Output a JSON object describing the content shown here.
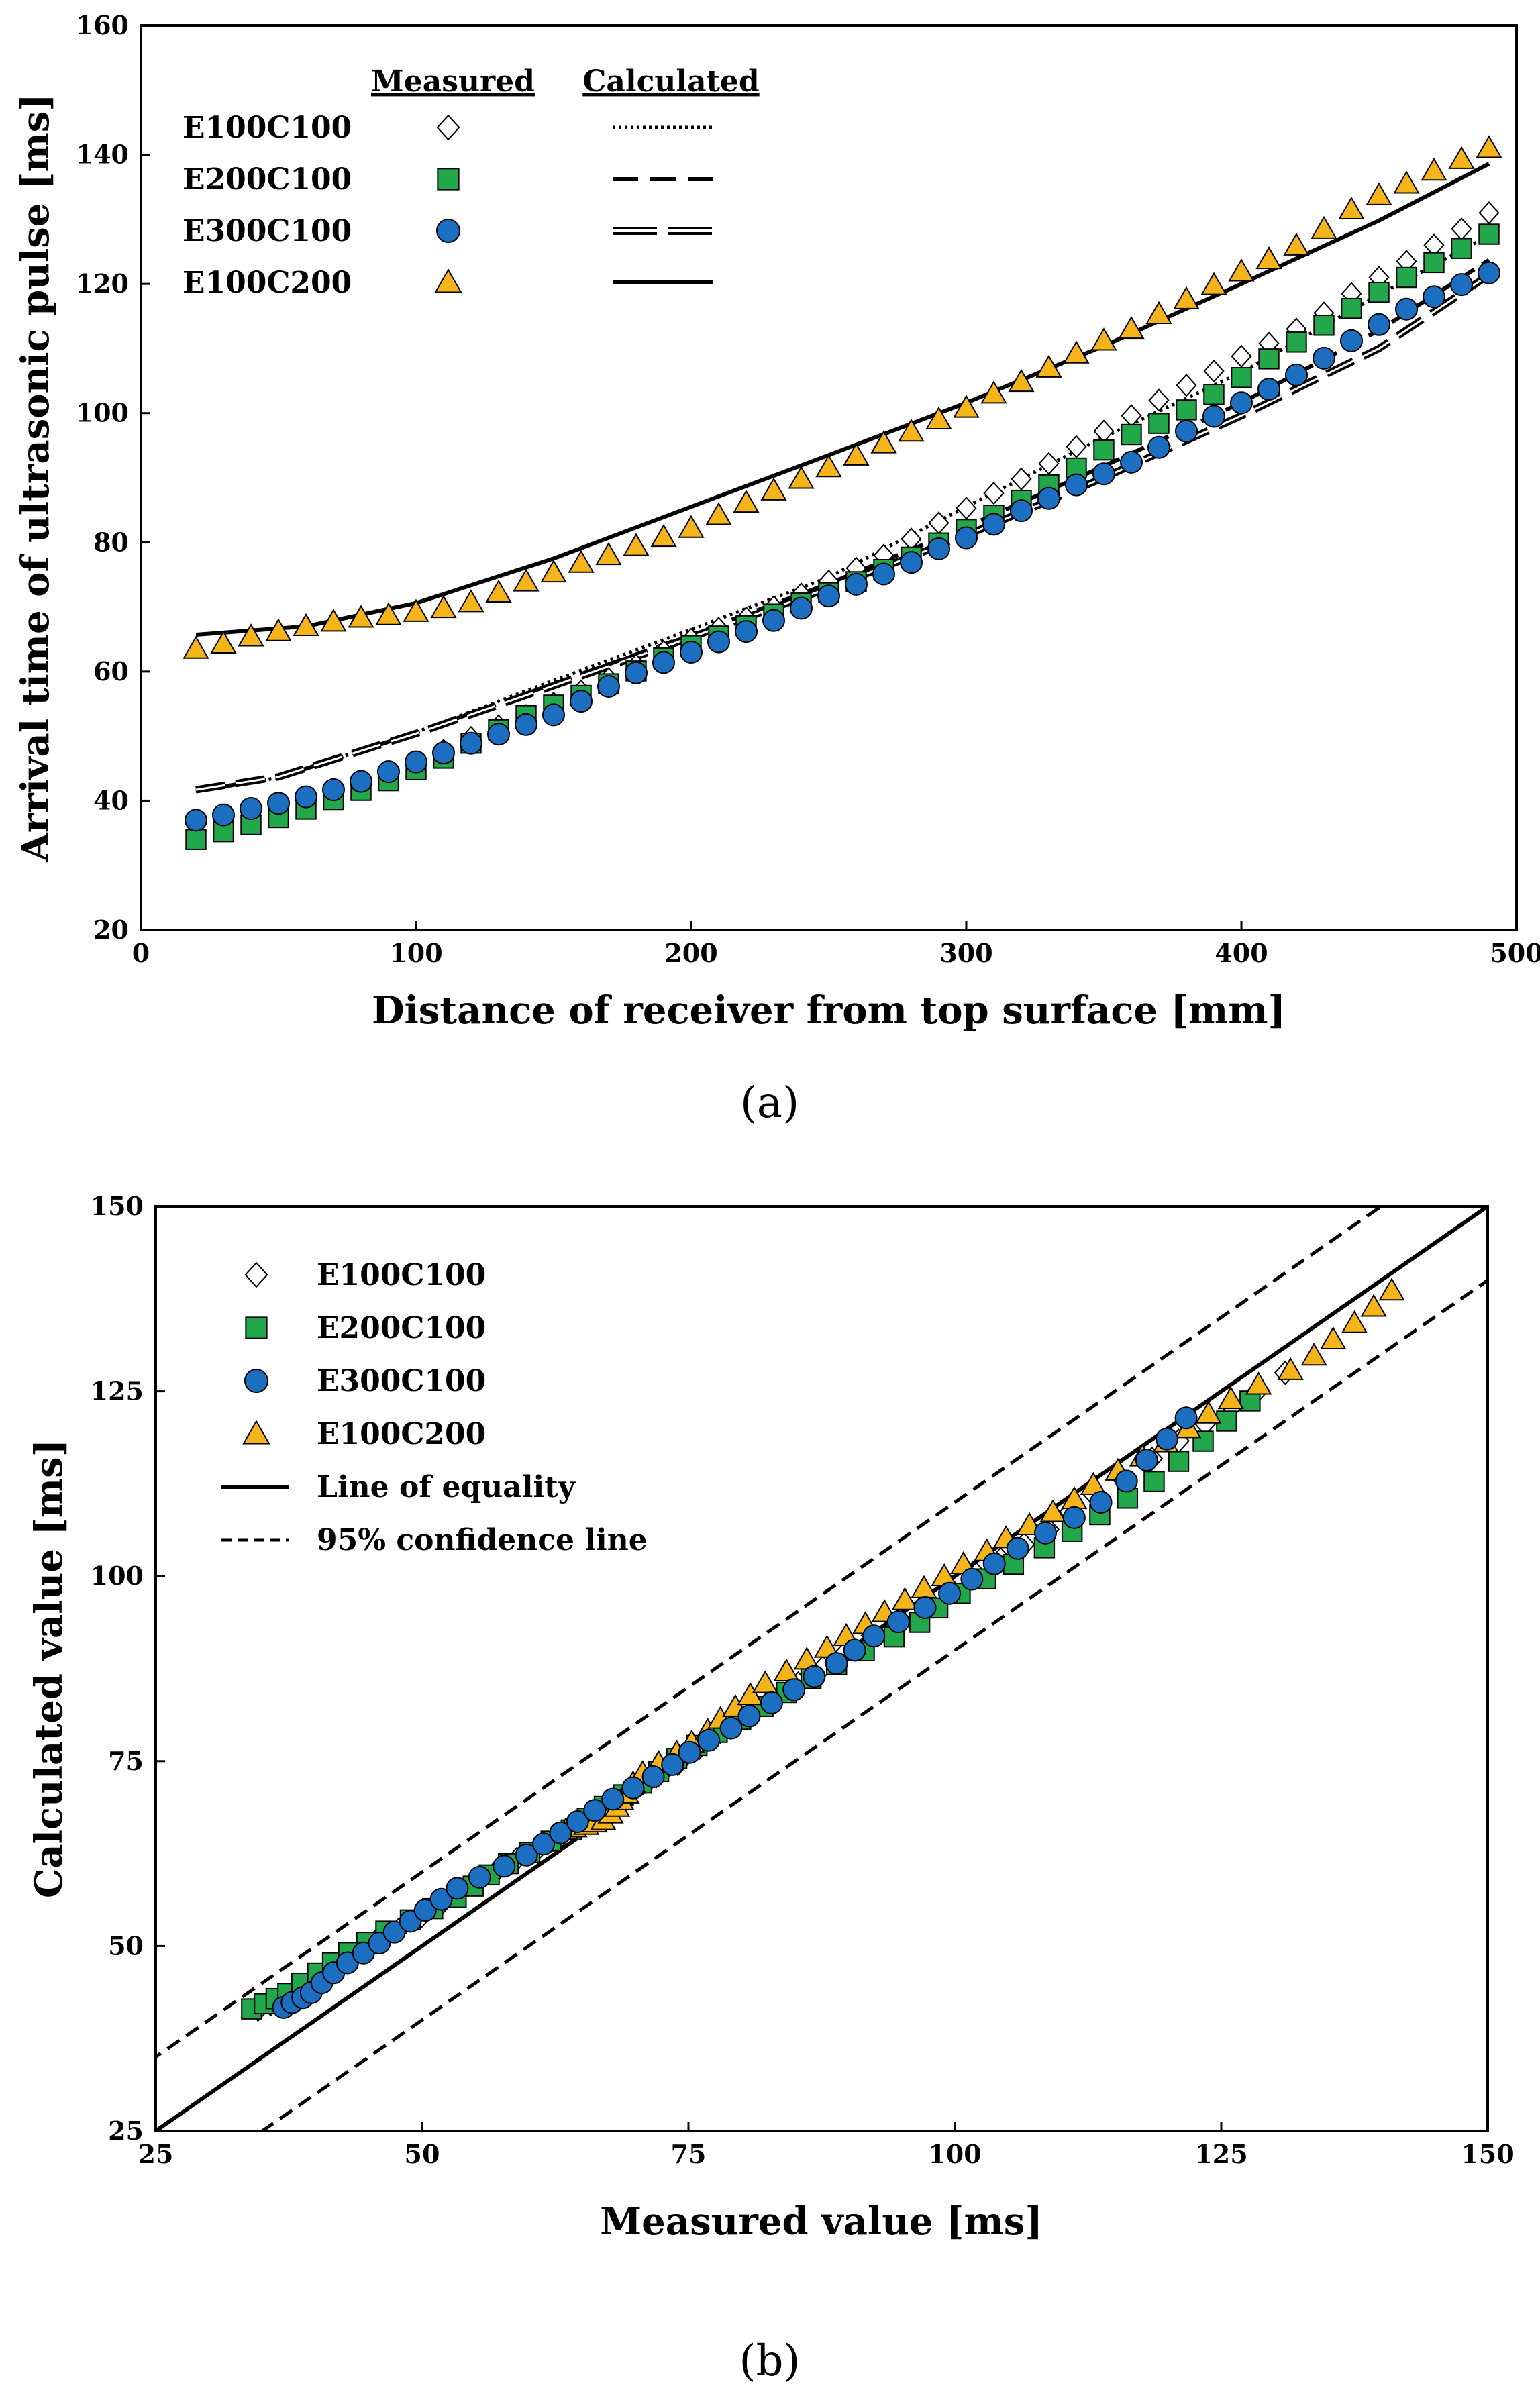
{
  "chart_data": [
    {
      "type": "scatter",
      "panel_label": "(a)",
      "xlabel": "Distance of receiver from top surface [mm]",
      "ylabel": "Arrival time of ultrasonic pulse [ms]",
      "xlim": [
        0,
        500
      ],
      "ylim": [
        20,
        160
      ],
      "xticks": [
        0,
        100,
        200,
        300,
        400,
        500
      ],
      "yticks": [
        20,
        40,
        60,
        80,
        100,
        120,
        140,
        160
      ],
      "legend_headers": {
        "measured": "Measured",
        "calculated": "Calculated"
      },
      "x": [
        20,
        30,
        40,
        50,
        60,
        70,
        80,
        90,
        100,
        110,
        120,
        130,
        140,
        150,
        160,
        170,
        180,
        190,
        200,
        210,
        220,
        230,
        240,
        250,
        260,
        270,
        280,
        290,
        300,
        310,
        320,
        330,
        340,
        350,
        360,
        370,
        380,
        390,
        400,
        410,
        420,
        430,
        440,
        450,
        460,
        470,
        480,
        490
      ],
      "series": [
        {
          "name": "E100C100",
          "marker": "diamond",
          "color": "#ffffff",
          "values": [
            34.6,
            35.8,
            37.0,
            38.3,
            39.6,
            41.1,
            42.5,
            44.0,
            45.6,
            47.8,
            49.8,
            51.6,
            53.2,
            55.1,
            57.0,
            58.9,
            61.0,
            63.1,
            65.0,
            66.7,
            68.3,
            70.0,
            72.0,
            74.0,
            76.0,
            78.0,
            80.5,
            83.0,
            85.3,
            87.6,
            89.8,
            92.2,
            94.8,
            97.2,
            99.6,
            102.0,
            104.3,
            106.5,
            108.8,
            110.8,
            113.0,
            115.5,
            118.5,
            121.0,
            123.5,
            126.0,
            128.5,
            131.0
          ]
        },
        {
          "name": "E200C100",
          "marker": "square",
          "color": "#22a84a",
          "values": [
            34.0,
            35.2,
            36.3,
            37.4,
            38.7,
            40.2,
            41.6,
            43.1,
            44.8,
            46.6,
            48.9,
            51.0,
            53.2,
            54.8,
            56.3,
            58.1,
            60.1,
            62.1,
            64.0,
            65.5,
            67.1,
            68.9,
            70.6,
            72.2,
            73.9,
            75.8,
            77.7,
            79.9,
            82.0,
            84.2,
            86.5,
            88.9,
            91.5,
            94.3,
            96.7,
            98.4,
            100.5,
            102.9,
            105.5,
            108.4,
            111.0,
            113.6,
            116.2,
            118.7,
            121.0,
            123.3,
            125.5,
            127.7
          ]
        },
        {
          "name": "E300C100",
          "marker": "circle",
          "color": "#1c6fc0",
          "values": [
            37.0,
            37.8,
            38.8,
            39.6,
            40.6,
            41.7,
            43.0,
            44.5,
            46.0,
            47.4,
            48.9,
            50.3,
            51.8,
            53.3,
            55.4,
            57.7,
            59.8,
            61.4,
            63.0,
            64.6,
            66.2,
            67.9,
            69.8,
            71.7,
            73.5,
            75.1,
            76.9,
            79.0,
            80.7,
            82.8,
            84.9,
            86.8,
            88.9,
            90.6,
            92.4,
            94.7,
            97.2,
            99.5,
            101.6,
            103.7,
            105.9,
            108.5,
            111.2,
            113.7,
            116.1,
            118.0,
            119.9,
            121.7
          ]
        },
        {
          "name": "E100C200",
          "marker": "triangle",
          "color": "#f4b41a",
          "values": [
            63.5,
            64.3,
            65.4,
            66.2,
            67.0,
            67.7,
            68.3,
            68.7,
            69.2,
            69.8,
            70.7,
            72.2,
            73.9,
            75.3,
            76.8,
            78.0,
            79.4,
            80.8,
            82.2,
            84.2,
            86.1,
            88.0,
            89.8,
            91.6,
            93.4,
            95.3,
            97.1,
            99.0,
            100.8,
            103.0,
            104.8,
            107.0,
            109.2,
            111.2,
            113.0,
            115.3,
            117.6,
            119.8,
            121.9,
            123.8,
            125.9,
            128.5,
            131.5,
            133.7,
            135.5,
            137.5,
            139.3,
            141.0
          ]
        }
      ],
      "calculated_curves": [
        {
          "name": "E100C100",
          "style": "dotted",
          "points": [
            [
              20,
              41.4
            ],
            [
              50,
              43.6
            ],
            [
              100,
              50.6
            ],
            [
              150,
              58.6
            ],
            [
              200,
              66.5
            ],
            [
              250,
              74.6
            ],
            [
              300,
              85.5
            ],
            [
              350,
              96.3
            ],
            [
              400,
              106.3
            ],
            [
              450,
              118.3
            ],
            [
              490,
              127.5
            ]
          ]
        },
        {
          "name": "E200C100",
          "style": "dashed",
          "points": [
            [
              20,
              41.5
            ],
            [
              50,
              43.6
            ],
            [
              100,
              50.5
            ],
            [
              150,
              58.1
            ],
            [
              200,
              65.7
            ],
            [
              250,
              73.6
            ],
            [
              300,
              82.4
            ],
            [
              350,
              91.8
            ],
            [
              400,
              101.6
            ],
            [
              450,
              112.8
            ],
            [
              490,
              123.7
            ]
          ]
        },
        {
          "name": "E300C100",
          "style": "double-dashed",
          "points": [
            [
              20,
              41.7
            ],
            [
              50,
              43.7
            ],
            [
              100,
              50.4
            ],
            [
              150,
              57.8
            ],
            [
              200,
              65.3
            ],
            [
              250,
              72.9
            ],
            [
              300,
              81.1
            ],
            [
              350,
              90.0
            ],
            [
              400,
              99.6
            ],
            [
              450,
              110.0
            ],
            [
              490,
              121.4
            ]
          ]
        },
        {
          "name": "E100C200",
          "style": "solid",
          "points": [
            [
              20,
              65.7
            ],
            [
              60,
              67.0
            ],
            [
              100,
              70.6
            ],
            [
              150,
              77.5
            ],
            [
              200,
              85.5
            ],
            [
              250,
              93.5
            ],
            [
              300,
              101.6
            ],
            [
              350,
              110.4
            ],
            [
              400,
              120.0
            ],
            [
              450,
              129.8
            ],
            [
              490,
              138.6
            ]
          ]
        }
      ]
    },
    {
      "type": "scatter",
      "panel_label": "(b)",
      "xlabel": "Measured value [ms]",
      "ylabel": "Calculated value [ms]",
      "xlim": [
        25,
        150
      ],
      "ylim": [
        25,
        150
      ],
      "xticks": [
        25,
        50,
        75,
        100,
        125,
        150
      ],
      "yticks": [
        25,
        50,
        75,
        100,
        125,
        150
      ],
      "series_names": [
        "E100C100",
        "E200C100",
        "E300C100",
        "E100C200"
      ],
      "line_of_equality": {
        "label": "Line of equality",
        "slope": 1,
        "intercept": 0
      },
      "confidence_lines": {
        "label": "95% confidence line",
        "offsets": [
          10,
          -10
        ]
      }
    }
  ]
}
